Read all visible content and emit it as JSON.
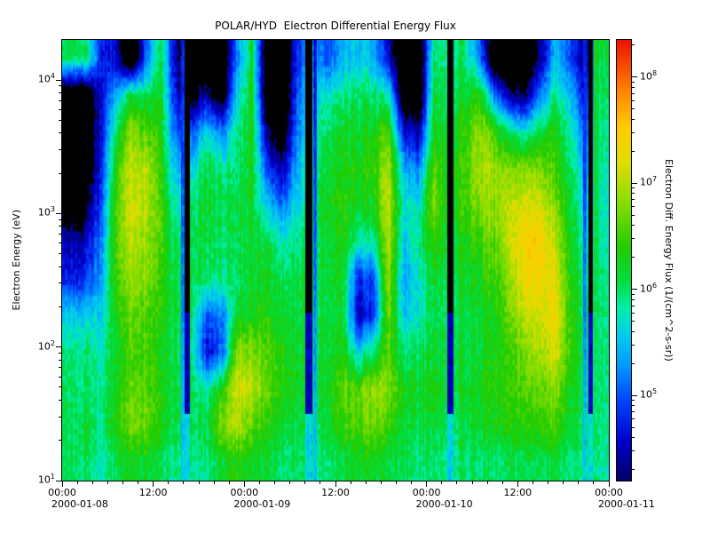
{
  "chart_data": {
    "type": "heatmap",
    "title": "POLAR/HYD  Electron Differential Energy Flux",
    "x": {
      "label_type": "time",
      "range_hours": [
        0,
        72
      ],
      "minor_tick_step_hours": 2,
      "major_ticks": [
        {
          "hours": 0,
          "label": "00:00"
        },
        {
          "hours": 12,
          "label": "12:00"
        },
        {
          "hours": 24,
          "label": "00:00"
        },
        {
          "hours": 36,
          "label": "12:00"
        },
        {
          "hours": 48,
          "label": "00:00"
        },
        {
          "hours": 60,
          "label": "12:00"
        },
        {
          "hours": 72,
          "label": "00:00"
        }
      ],
      "date_labels": [
        {
          "hours": 0,
          "label": "2000-01-08"
        },
        {
          "hours": 24,
          "label": "2000-01-09"
        },
        {
          "hours": 48,
          "label": "2000-01-10"
        },
        {
          "hours": 72,
          "label": "2000-01-11"
        }
      ]
    },
    "y": {
      "label": "Electron Energy (eV)",
      "scale": "log10",
      "range_log10_ev": [
        1.0,
        4.3
      ],
      "tick_base": "10",
      "major_tick_exponents": [
        1,
        2,
        3,
        4
      ]
    },
    "z": {
      "label": "Electron Diff. Energy Flux (1/(cm^2-s-sr))",
      "scale": "log10",
      "range_log10": [
        4.2,
        8.35
      ],
      "tick_base": "10",
      "major_tick_exponents": [
        5,
        6,
        7,
        8
      ],
      "below_min_color": "#000000",
      "colormap_stops": [
        {
          "pos": 0.0,
          "color": "#000066"
        },
        {
          "pos": 0.09,
          "color": "#0000cc"
        },
        {
          "pos": 0.18,
          "color": "#0044ff"
        },
        {
          "pos": 0.26,
          "color": "#0099ff"
        },
        {
          "pos": 0.33,
          "color": "#00ccee"
        },
        {
          "pos": 0.39,
          "color": "#00eeaa"
        },
        {
          "pos": 0.45,
          "color": "#00dd44"
        },
        {
          "pos": 0.53,
          "color": "#22cc00"
        },
        {
          "pos": 0.63,
          "color": "#88dd00"
        },
        {
          "pos": 0.72,
          "color": "#dddd00"
        },
        {
          "pos": 0.8,
          "color": "#ffcc00"
        },
        {
          "pos": 0.88,
          "color": "#ff8800"
        },
        {
          "pos": 1.0,
          "color": "#ee1100"
        }
      ]
    },
    "grid_log10_flux": {
      "orientation": "columns; each column runs top (high energy ~2e4 eV) to bottom (10 eV)",
      "n_time_columns": 36,
      "hours_per_column": 2,
      "n_energy_rows": 12,
      "values": [
        [
          6.0,
          3.5,
          3.5,
          3.6,
          3.9,
          4.4,
          4.7,
          5.5,
          5.9,
          6.0,
          6.0,
          6.0
        ],
        [
          6.0,
          3.5,
          3.5,
          3.6,
          4.0,
          4.5,
          4.8,
          5.6,
          5.9,
          6.0,
          6.1,
          6.0
        ],
        [
          4.8,
          4.6,
          4.6,
          4.7,
          4.9,
          5.1,
          5.3,
          5.6,
          5.8,
          5.9,
          5.9,
          5.8
        ],
        [
          4.6,
          5.4,
          6.0,
          6.4,
          6.6,
          6.6,
          6.5,
          6.3,
          6.2,
          6.3,
          6.4,
          6.1
        ],
        [
          3.5,
          6.2,
          6.9,
          7.1,
          7.2,
          7.1,
          6.9,
          6.7,
          6.6,
          6.7,
          6.8,
          6.3
        ],
        [
          5.0,
          6.0,
          6.6,
          7.0,
          7.0,
          6.9,
          6.8,
          6.6,
          6.5,
          6.6,
          6.7,
          6.2
        ],
        [
          6.1,
          6.2,
          6.3,
          6.4,
          6.5,
          6.5,
          6.4,
          6.3,
          6.2,
          6.3,
          6.3,
          6.0
        ],
        [
          4.4,
          4.6,
          5.0,
          5.4,
          5.8,
          6.0,
          6.1,
          6.1,
          6.1,
          6.1,
          6.1,
          5.9
        ],
        [
          3.5,
          4.0,
          5.0,
          5.6,
          6.0,
          6.1,
          6.1,
          6.1,
          6.0,
          6.1,
          6.1,
          5.9
        ],
        [
          3.5,
          4.4,
          5.6,
          6.1,
          6.2,
          6.1,
          6.0,
          5.0,
          4.6,
          5.8,
          6.1,
          5.9
        ],
        [
          3.5,
          3.8,
          5.2,
          5.9,
          6.1,
          6.0,
          5.9,
          5.2,
          5.0,
          6.4,
          6.8,
          6.2
        ],
        [
          5.2,
          5.6,
          5.9,
          6.0,
          6.1,
          6.1,
          6.0,
          6.2,
          6.8,
          7.2,
          7.0,
          6.4
        ],
        [
          6.2,
          6.3,
          6.3,
          6.3,
          6.2,
          6.2,
          6.2,
          6.3,
          6.8,
          7.0,
          6.6,
          6.2
        ],
        [
          3.5,
          3.5,
          4.2,
          4.8,
          5.5,
          6.0,
          6.2,
          6.3,
          6.5,
          6.6,
          6.3,
          6.1
        ],
        [
          3.5,
          3.5,
          3.8,
          4.5,
          5.2,
          5.8,
          6.1,
          6.2,
          6.4,
          6.4,
          6.2,
          6.0
        ],
        [
          4.8,
          5.0,
          5.2,
          5.4,
          5.6,
          5.9,
          6.1,
          6.1,
          6.2,
          6.2,
          6.1,
          6.0
        ],
        [
          5.4,
          5.6,
          5.8,
          5.9,
          6.0,
          6.0,
          6.1,
          6.1,
          6.1,
          6.1,
          6.0,
          5.9
        ],
        [
          5.0,
          5.8,
          6.1,
          6.2,
          6.3,
          6.2,
          6.2,
          6.1,
          6.2,
          6.3,
          6.2,
          6.0
        ],
        [
          5.4,
          5.9,
          6.2,
          6.3,
          6.4,
          6.3,
          6.2,
          6.2,
          6.3,
          6.6,
          6.4,
          6.1
        ],
        [
          5.6,
          6.0,
          6.2,
          6.3,
          6.2,
          5.8,
          4.8,
          4.5,
          5.6,
          6.6,
          6.6,
          6.2
        ],
        [
          5.4,
          6.0,
          6.3,
          6.4,
          6.3,
          5.8,
          5.0,
          4.8,
          6.0,
          6.9,
          6.7,
          6.2
        ],
        [
          4.6,
          5.8,
          6.6,
          7.0,
          7.1,
          7.0,
          6.9,
          6.7,
          6.6,
          6.8,
          6.5,
          6.1
        ],
        [
          3.5,
          3.6,
          4.6,
          5.4,
          5.7,
          5.5,
          5.3,
          5.5,
          5.9,
          6.2,
          6.1,
          6.0
        ],
        [
          3.5,
          3.6,
          4.4,
          5.2,
          5.7,
          5.9,
          5.7,
          5.7,
          6.0,
          6.2,
          6.1,
          5.9
        ],
        [
          6.0,
          6.2,
          6.3,
          6.6,
          6.8,
          6.5,
          6.2,
          6.1,
          6.2,
          6.3,
          6.2,
          6.0
        ],
        [
          5.9,
          6.0,
          6.1,
          6.2,
          6.2,
          6.1,
          6.0,
          6.0,
          6.1,
          6.1,
          6.0,
          5.9
        ],
        [
          6.0,
          6.2,
          6.4,
          6.5,
          6.5,
          6.3,
          6.2,
          6.1,
          6.1,
          6.2,
          6.1,
          6.0
        ],
        [
          5.2,
          6.4,
          6.9,
          7.0,
          6.8,
          6.5,
          6.3,
          6.2,
          6.2,
          6.3,
          6.2,
          6.0
        ],
        [
          3.5,
          5.2,
          6.5,
          6.9,
          6.9,
          6.7,
          6.5,
          6.3,
          6.3,
          6.4,
          6.3,
          6.0
        ],
        [
          3.5,
          4.4,
          6.0,
          6.8,
          7.1,
          7.1,
          6.9,
          6.7,
          6.5,
          6.5,
          6.4,
          6.1
        ],
        [
          3.5,
          4.2,
          5.8,
          6.8,
          7.2,
          7.5,
          7.4,
          7.1,
          6.8,
          6.6,
          6.4,
          6.1
        ],
        [
          4.4,
          5.2,
          6.2,
          6.8,
          7.2,
          7.5,
          7.4,
          7.2,
          7.0,
          6.7,
          6.5,
          6.1
        ],
        [
          5.4,
          5.9,
          6.3,
          6.5,
          6.7,
          7.0,
          7.2,
          7.3,
          7.1,
          6.8,
          6.5,
          6.1
        ],
        [
          5.0,
          5.5,
          5.9,
          6.1,
          6.2,
          6.3,
          6.4,
          6.5,
          6.5,
          6.3,
          6.2,
          6.0
        ],
        [
          4.2,
          4.6,
          5.0,
          5.4,
          5.6,
          5.8,
          5.9,
          6.0,
          6.0,
          6.0,
          6.0,
          5.9
        ],
        [
          6.2,
          6.1,
          6.0,
          5.9,
          5.8,
          5.9,
          6.0,
          6.0,
          6.0,
          6.0,
          6.0,
          5.9
        ]
      ]
    },
    "data_gap_stripes": [
      {
        "t_hours": 15.9,
        "width_hours": 0.5,
        "profile": "blue"
      },
      {
        "t_hours": 16.45,
        "width_hours": 0.75,
        "profile": "dark"
      },
      {
        "t_hours": 32.5,
        "width_hours": 0.95,
        "profile": "dark"
      },
      {
        "t_hours": 33.3,
        "width_hours": 0.4,
        "profile": "blue"
      },
      {
        "t_hours": 51.2,
        "width_hours": 0.8,
        "profile": "dark"
      },
      {
        "t_hours": 68.9,
        "width_hours": 0.5,
        "profile": "blue"
      },
      {
        "t_hours": 69.65,
        "width_hours": 0.6,
        "profile": "dark"
      },
      {
        "t_hours": 70.45,
        "width_hours": 0.7,
        "profile": "greenTall"
      }
    ]
  }
}
